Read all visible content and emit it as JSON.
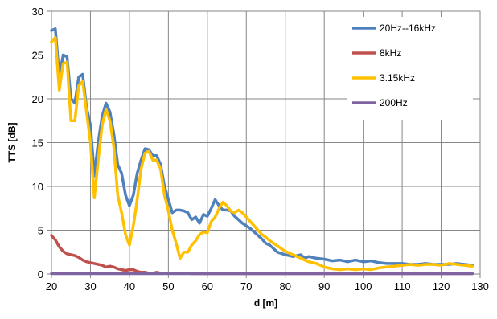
{
  "chart_data": {
    "type": "line",
    "xlabel": "d [m]",
    "ylabel": "TTS [dB]",
    "xlim": [
      20,
      130
    ],
    "ylim": [
      0,
      30
    ],
    "x_ticks": [
      20,
      30,
      40,
      50,
      60,
      70,
      80,
      90,
      100,
      110,
      120,
      130
    ],
    "y_ticks": [
      0,
      5,
      10,
      15,
      20,
      25,
      30
    ],
    "grid": true,
    "legend_position": "top-right",
    "series": [
      {
        "name": "20Hz--16kHz",
        "color": "#4F81BD",
        "x": [
          20,
          21,
          22,
          23,
          24,
          25,
          26,
          27,
          28,
          29,
          30,
          31,
          32,
          33,
          34,
          35,
          36,
          37,
          38,
          39,
          40,
          41,
          42,
          43,
          44,
          45,
          46,
          47,
          48,
          49,
          50,
          51,
          52,
          53,
          54,
          55,
          56,
          57,
          58,
          59,
          60,
          61,
          62,
          63,
          64,
          65,
          66,
          67,
          68,
          69,
          70,
          71,
          72,
          73,
          74,
          75,
          76,
          78,
          80,
          82,
          84,
          85,
          86,
          88,
          90,
          92,
          94,
          96,
          98,
          100,
          102,
          104,
          106,
          108,
          110,
          112,
          114,
          116,
          118,
          120,
          122,
          124,
          126,
          128
        ],
        "y": [
          27.8,
          28,
          22.5,
          25,
          24.8,
          20,
          19.5,
          22.5,
          22.8,
          19,
          17,
          11.2,
          15,
          18,
          19.5,
          18.5,
          16,
          12.5,
          11.5,
          9,
          7.8,
          9,
          11.5,
          13,
          14.3,
          14.2,
          13.5,
          13.5,
          12.5,
          10,
          8.5,
          7,
          7.3,
          7.3,
          7.2,
          7,
          6.2,
          6.5,
          5.8,
          6.8,
          6.6,
          7.5,
          8.5,
          7.8,
          7.3,
          7.3,
          7.2,
          6.6,
          6.2,
          5.8,
          5.5,
          5.2,
          4.8,
          4.4,
          4,
          3.5,
          3.3,
          2.5,
          2.2,
          2,
          2.2,
          1.8,
          2,
          1.8,
          1.7,
          1.5,
          1.6,
          1.4,
          1.6,
          1.4,
          1.5,
          1.3,
          1.2,
          1.2,
          1.2,
          1.1,
          1.1,
          1.2,
          1.1,
          1.1,
          1.1,
          1.2,
          1.1,
          1.0
        ]
      },
      {
        "name": "8kHz",
        "color": "#C0504D",
        "x": [
          20,
          21,
          22,
          23,
          24,
          25,
          26,
          27,
          28,
          29,
          30,
          31,
          32,
          33,
          34,
          35,
          36,
          37,
          38,
          39,
          40,
          41,
          42,
          43,
          44,
          45,
          46,
          47,
          48,
          50,
          52,
          54,
          56,
          58,
          60,
          65,
          70,
          80,
          90,
          100,
          110,
          120,
          128
        ],
        "y": [
          4.4,
          3.9,
          3.1,
          2.6,
          2.3,
          2.2,
          2.1,
          1.9,
          1.6,
          1.4,
          1.3,
          1.2,
          1.1,
          1.0,
          0.8,
          0.9,
          0.8,
          0.6,
          0.5,
          0.4,
          0.5,
          0.5,
          0.3,
          0.2,
          0.2,
          0.1,
          0.1,
          0.2,
          0.1,
          0.1,
          0.1,
          0.1,
          0.05,
          0.05,
          0.05,
          0.05,
          0.05,
          0.05,
          0.05,
          0.05,
          0.05,
          0.05,
          0.05
        ]
      },
      {
        "name": "3.15kHz",
        "color": "#FFC000",
        "x": [
          20,
          21,
          22,
          23,
          24,
          25,
          26,
          27,
          28,
          29,
          30,
          31,
          32,
          33,
          34,
          35,
          36,
          37,
          38,
          39,
          40,
          41,
          42,
          43,
          44,
          45,
          46,
          47,
          48,
          49,
          50,
          51,
          52,
          53,
          54,
          55,
          56,
          57,
          58,
          59,
          60,
          61,
          62,
          63,
          64,
          65,
          66,
          67,
          68,
          69,
          70,
          71,
          72,
          73,
          74,
          75,
          76,
          78,
          80,
          82,
          84,
          86,
          88,
          90,
          92,
          94,
          96,
          98,
          100,
          102,
          104,
          106,
          108,
          110,
          112,
          114,
          116,
          118,
          120,
          122,
          124,
          126,
          128
        ],
        "y": [
          26.5,
          27,
          21,
          24,
          24.2,
          17.5,
          17.5,
          21.5,
          22,
          18.5,
          15,
          8.7,
          13,
          17,
          18.8,
          17.5,
          14.5,
          9,
          7,
          4.5,
          3.3,
          5.5,
          8.5,
          12,
          13.8,
          14,
          13,
          13,
          12,
          9,
          7.2,
          5,
          3.5,
          1.8,
          2.5,
          2.5,
          3.3,
          3.8,
          4.5,
          4.8,
          4.7,
          6,
          6.5,
          7.5,
          8.2,
          7.8,
          7.2,
          7,
          7.3,
          7,
          6.5,
          6,
          5.5,
          5,
          4.5,
          4.2,
          3.8,
          3.2,
          2.6,
          2.2,
          1.8,
          1.4,
          1.2,
          0.8,
          0.6,
          0.5,
          0.6,
          0.5,
          0.6,
          0.5,
          0.7,
          0.8,
          0.9,
          1.0,
          1.1,
          1.0,
          1.1,
          1.1,
          1.0,
          1.2,
          1.1,
          1.0,
          0.9
        ]
      },
      {
        "name": "200Hz",
        "color": "#8064A2",
        "x": [
          20,
          30,
          40,
          50,
          60,
          70,
          80,
          90,
          100,
          110,
          120,
          128
        ],
        "y": [
          0.05,
          0.05,
          0.05,
          0.05,
          0.05,
          0.05,
          0.05,
          0.05,
          0.05,
          0.05,
          0.05,
          0.05
        ]
      }
    ]
  }
}
